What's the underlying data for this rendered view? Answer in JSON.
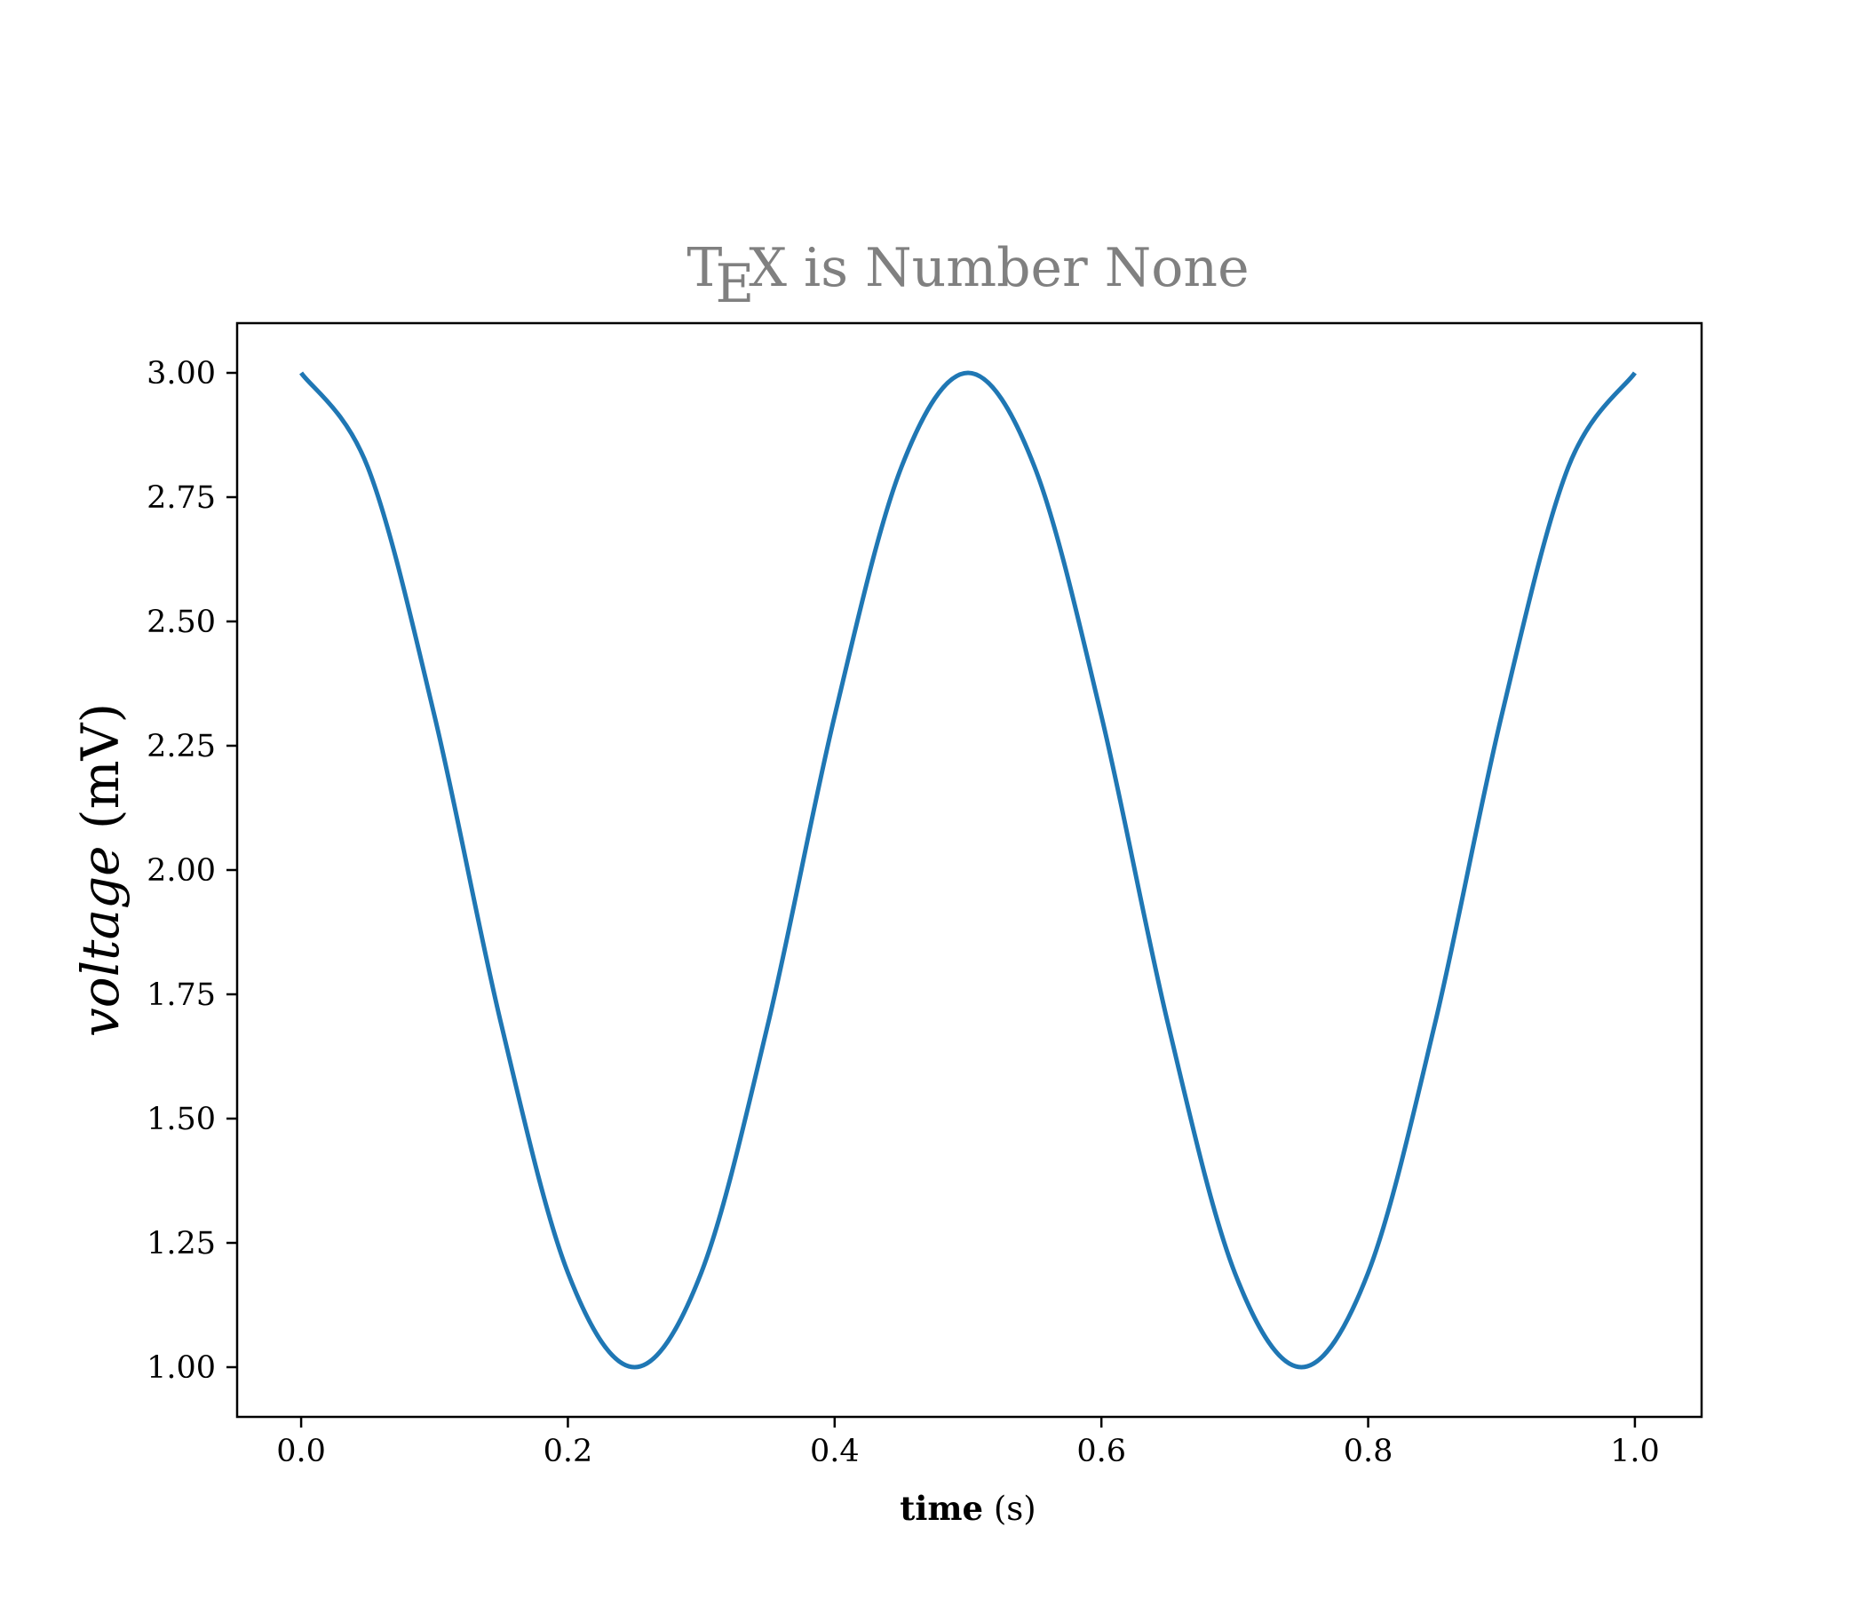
{
  "chart_data": {
    "type": "line",
    "title": {
      "tex_t": "T",
      "tex_e": "E",
      "tex_x": "X",
      "rest": " is Number None"
    },
    "xlabel": {
      "bold": "time",
      "rest": " (s)"
    },
    "ylabel": {
      "italic": "voltage",
      "rest": " (mV)"
    },
    "xlim": [
      -0.048,
      1.05
    ],
    "ylim": [
      0.9,
      3.1
    ],
    "xticks": [
      0.0,
      0.2,
      0.4,
      0.6,
      0.8,
      1.0
    ],
    "xtick_labels": [
      "0.0",
      "0.2",
      "0.4",
      "0.6",
      "0.8",
      "1.0"
    ],
    "yticks": [
      1.0,
      1.25,
      1.5,
      1.75,
      2.0,
      2.25,
      2.5,
      2.75,
      3.0
    ],
    "ytick_labels": [
      "1.00",
      "1.25",
      "1.50",
      "1.75",
      "2.00",
      "2.25",
      "2.50",
      "2.75",
      "3.00"
    ],
    "grid": false,
    "series": [
      {
        "color": "#1f77b4",
        "x": [
          0.0,
          0.05,
          0.1,
          0.15,
          0.2,
          0.25,
          0.3,
          0.35,
          0.4,
          0.45,
          0.5,
          0.55,
          0.6,
          0.65,
          0.7,
          0.75,
          0.8,
          0.85,
          0.9,
          0.95,
          1.0
        ],
        "y": [
          3.0,
          2.81,
          2.31,
          1.69,
          1.19,
          1.0,
          1.19,
          1.69,
          2.31,
          2.81,
          3.0,
          2.81,
          2.31,
          1.69,
          1.19,
          1.0,
          1.19,
          1.69,
          2.31,
          2.81,
          3.0
        ]
      }
    ]
  },
  "colors": {
    "title": "#808080",
    "line": "#1f77b4",
    "axes": "#000000"
  }
}
